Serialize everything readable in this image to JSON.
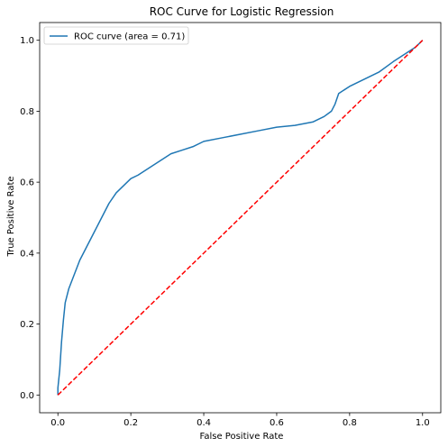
{
  "chart_data": {
    "type": "line",
    "title": "ROC Curve for Logistic Regression",
    "xlabel": "False Positive Rate",
    "ylabel": "True Positive Rate",
    "xlim": [
      -0.05,
      1.05
    ],
    "ylim": [
      -0.05,
      1.05
    ],
    "xticks": [
      "0.0",
      "0.2",
      "0.4",
      "0.6",
      "0.8",
      "1.0"
    ],
    "yticks": [
      "0.0",
      "0.2",
      "0.4",
      "0.6",
      "0.8",
      "1.0"
    ],
    "grid": false,
    "legend": {
      "placement": "top-left"
    },
    "series": [
      {
        "name": "ROC curve (area = 0.71)",
        "color": "#1f77b4",
        "style": "solid",
        "x": [
          0.0,
          0.0,
          0.005,
          0.01,
          0.015,
          0.02,
          0.03,
          0.045,
          0.06,
          0.08,
          0.1,
          0.12,
          0.14,
          0.16,
          0.18,
          0.2,
          0.22,
          0.25,
          0.28,
          0.31,
          0.34,
          0.37,
          0.4,
          0.45,
          0.5,
          0.55,
          0.6,
          0.65,
          0.7,
          0.73,
          0.75,
          0.76,
          0.77,
          0.8,
          0.84,
          0.88,
          0.92,
          0.95,
          0.98,
          1.0
        ],
        "y": [
          0.0,
          0.02,
          0.07,
          0.15,
          0.21,
          0.26,
          0.3,
          0.34,
          0.38,
          0.42,
          0.46,
          0.5,
          0.54,
          0.57,
          0.59,
          0.61,
          0.62,
          0.64,
          0.66,
          0.68,
          0.69,
          0.7,
          0.715,
          0.725,
          0.735,
          0.745,
          0.755,
          0.76,
          0.77,
          0.785,
          0.8,
          0.82,
          0.85,
          0.87,
          0.89,
          0.91,
          0.94,
          0.96,
          0.98,
          1.0
        ]
      },
      {
        "name": "",
        "color": "#ff0000",
        "style": "dashed",
        "x": [
          0.0,
          1.0
        ],
        "y": [
          0.0,
          1.0
        ]
      }
    ]
  }
}
